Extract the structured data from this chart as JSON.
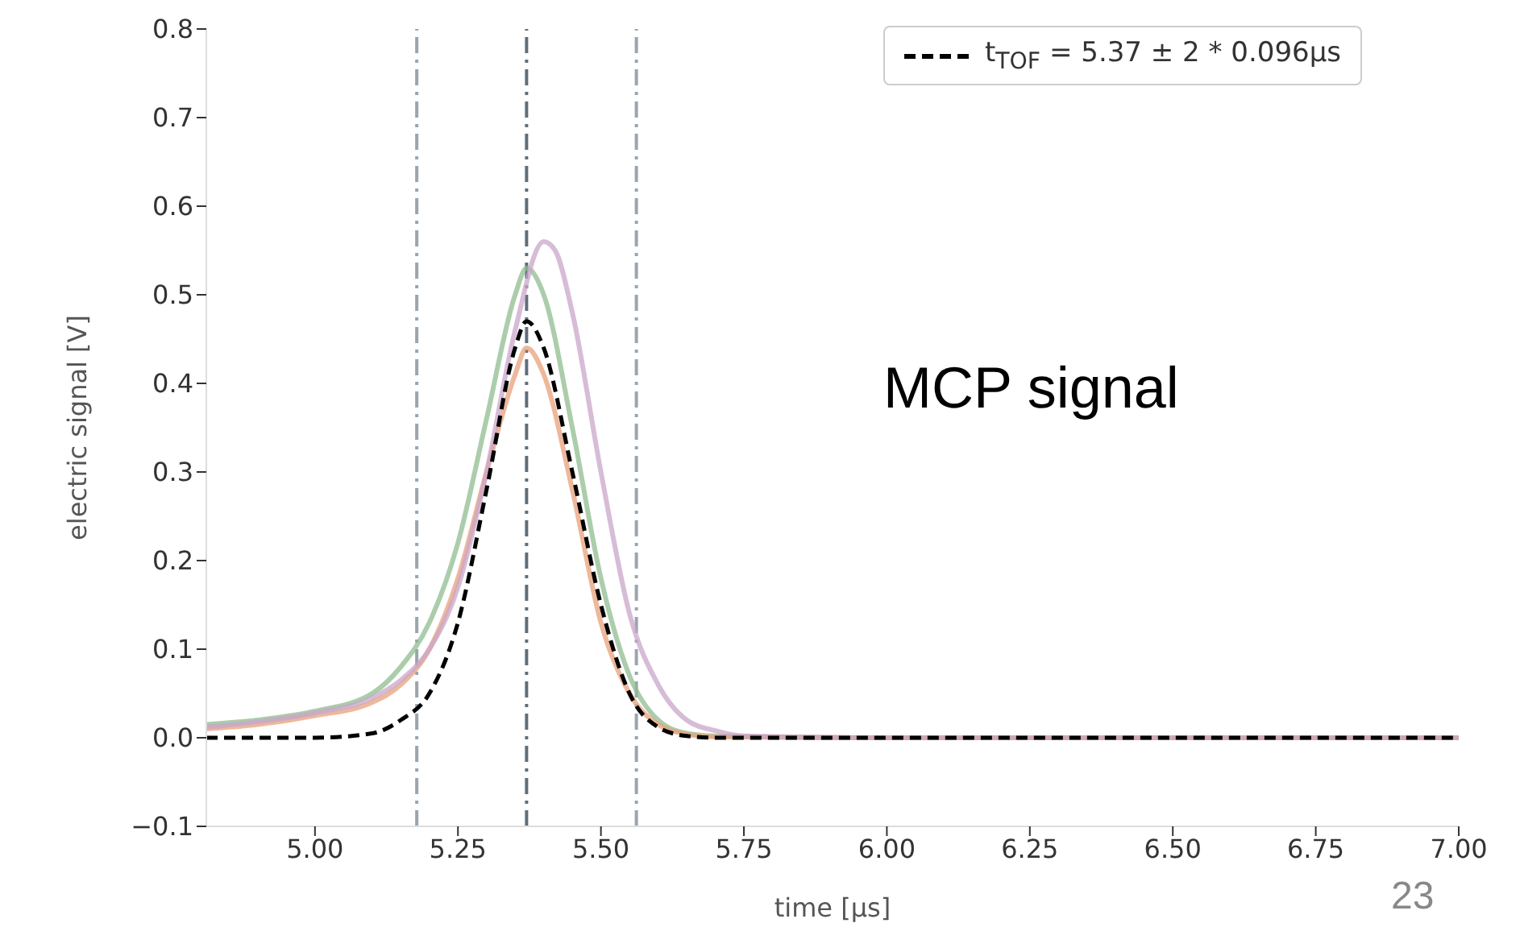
{
  "chart_data": {
    "type": "line",
    "xlabel": "time [μs]",
    "ylabel": "electric signal [V]",
    "xlim": [
      4.81,
      7.0
    ],
    "ylim": [
      -0.1,
      0.8
    ],
    "xticks": [
      {
        "value": 5,
        "label": "5.00"
      },
      5.25,
      {
        "value": 5.5,
        "label": "5.50"
      },
      5.75,
      {
        "value": 6,
        "label": "6.00"
      },
      6.25,
      {
        "value": 6.5,
        "label": "6.50"
      },
      6.75,
      {
        "value": 7,
        "label": "7.00"
      }
    ],
    "yticks": [
      {
        "value": -0.1,
        "label": "−0.1"
      },
      {
        "value": 0,
        "label": "0.0"
      },
      0.1,
      0.2,
      0.3,
      0.4,
      0.5,
      0.6,
      0.7,
      0.8
    ],
    "series": [
      {
        "color": "#8fbc8f",
        "x": [
          4.81,
          4.9,
          5.0,
          5.1,
          5.15,
          5.2,
          5.25,
          5.3,
          5.35,
          5.37,
          5.4,
          5.45,
          5.5,
          5.55,
          5.6,
          5.65,
          5.7,
          6.0,
          6.5,
          7.0
        ],
        "values": [
          0.015,
          0.02,
          0.03,
          0.05,
          0.08,
          0.13,
          0.22,
          0.36,
          0.5,
          0.53,
          0.5,
          0.35,
          0.18,
          0.07,
          0.02,
          0.005,
          0.002,
          0.0,
          0.0,
          0.0
        ]
      },
      {
        "color": "#e8a07a",
        "x": [
          4.81,
          4.9,
          5.0,
          5.1,
          5.15,
          5.2,
          5.25,
          5.3,
          5.35,
          5.37,
          5.4,
          5.45,
          5.5,
          5.55,
          5.6,
          5.65,
          5.7,
          6.0,
          6.5,
          7.0
        ],
        "values": [
          0.01,
          0.015,
          0.025,
          0.04,
          0.06,
          0.1,
          0.18,
          0.3,
          0.41,
          0.44,
          0.41,
          0.28,
          0.13,
          0.05,
          0.015,
          0.004,
          0.001,
          0.0,
          0.0,
          0.0
        ]
      },
      {
        "color": "#c9a6c9",
        "x": [
          4.81,
          4.9,
          5.0,
          5.1,
          5.15,
          5.2,
          5.25,
          5.3,
          5.35,
          5.4,
          5.42,
          5.45,
          5.5,
          5.55,
          5.6,
          5.65,
          5.7,
          5.75,
          6.0,
          6.5,
          7.0
        ],
        "values": [
          0.012,
          0.018,
          0.028,
          0.045,
          0.065,
          0.1,
          0.17,
          0.3,
          0.46,
          0.56,
          0.55,
          0.48,
          0.3,
          0.14,
          0.06,
          0.02,
          0.008,
          0.002,
          0.0,
          0.0,
          0.0
        ]
      },
      {
        "name": "t$_{TOF}$ = 5.37 ± 2 * 0.096μs",
        "color": "#000000",
        "line_style": "dashed",
        "x": [
          4.81,
          5.0,
          5.1,
          5.15,
          5.2,
          5.25,
          5.3,
          5.35,
          5.37,
          5.4,
          5.45,
          5.5,
          5.55,
          5.6,
          5.65,
          5.7,
          6.0,
          6.5,
          7.0
        ],
        "values": [
          0.0,
          0.0,
          0.005,
          0.02,
          0.05,
          0.13,
          0.28,
          0.44,
          0.47,
          0.44,
          0.3,
          0.15,
          0.05,
          0.012,
          0.002,
          0.0,
          0.0,
          0.0,
          0.0
        ]
      }
    ],
    "ref_lines": [
      {
        "axis": "x",
        "value": 5.178,
        "color": "#9aa5ae"
      },
      {
        "axis": "x",
        "value": 5.37,
        "color": "#5f6e7a"
      },
      {
        "axis": "x",
        "value": 5.562,
        "color": "#9aa5ae"
      }
    ],
    "legend": "top right",
    "annotations": [
      "MCP signal",
      "23"
    ]
  }
}
